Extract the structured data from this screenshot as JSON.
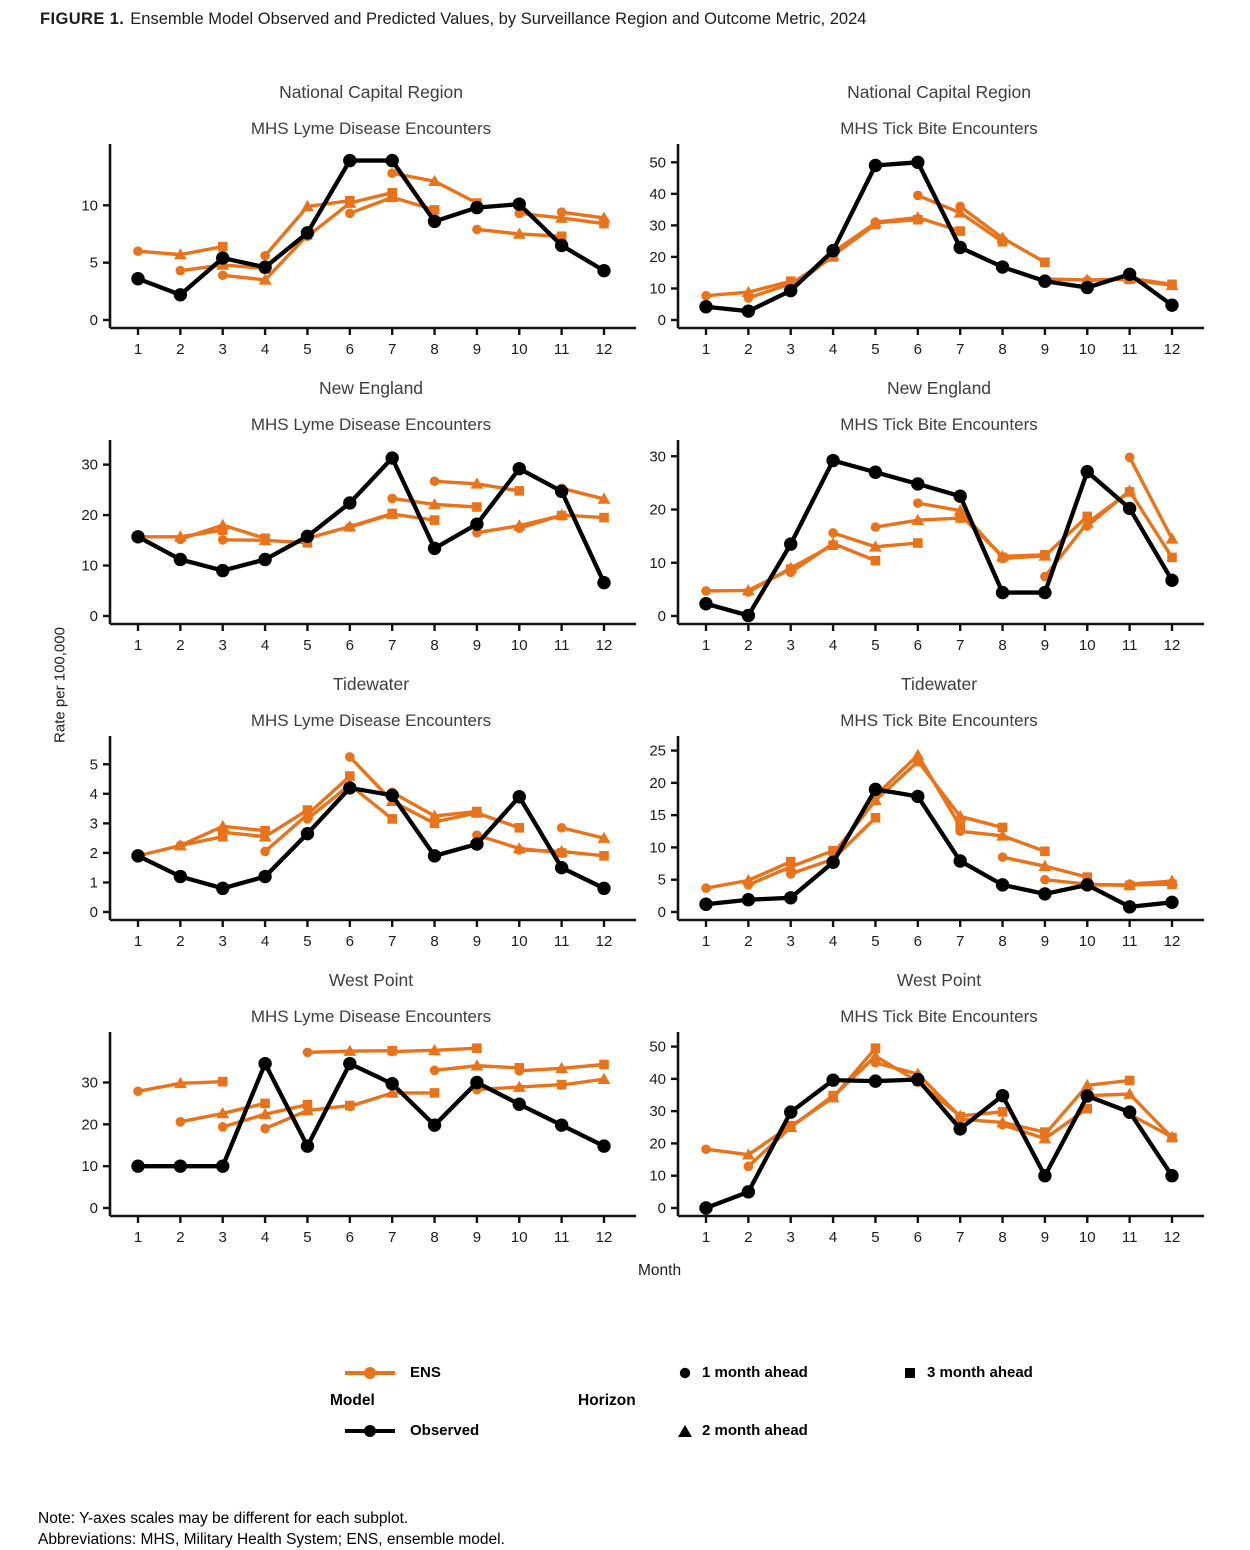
{
  "figure": {
    "title_label": "FIGURE 1.",
    "title_text": "Ensemble Model Observed and Predicted Values, by Surveillance Region and Outcome Metric, 2024",
    "y_axis_label": "Rate per 100,000",
    "x_axis_label": "Month",
    "notes": [
      "Note: Y-axes scales may be different for each subplot.",
      "Abbreviations: MHS, Military Health System; ENS, ensemble model."
    ]
  },
  "legend": {
    "model_header": "Model",
    "horizon_header": "Horizon",
    "ens_label": "ENS",
    "observed_label": "Observed",
    "horizon_items": [
      {
        "marker": "circle",
        "label": "1 month ahead"
      },
      {
        "marker": "triangle",
        "label": "2 month ahead"
      },
      {
        "marker": "square",
        "label": "3 month ahead"
      }
    ]
  },
  "colors": {
    "ens": "#E8731A",
    "observed": "#000000",
    "title_text": "#3D3D3D",
    "axis_text": "#1C1C1C"
  },
  "chart_data": [
    {
      "type": "line",
      "region": "National Capital Region",
      "metric": "MHS Lyme Disease Encounters",
      "months": [
        1,
        2,
        3,
        4,
        5,
        6,
        7,
        8,
        9,
        10,
        11,
        12
      ],
      "y_ticks": [
        0,
        5,
        10
      ],
      "ylim": [
        0,
        14.3
      ],
      "observed": [
        3.6,
        2.2,
        5.4,
        4.6,
        7.6,
        13.9,
        13.9,
        8.6,
        9.8,
        10.1,
        6.5,
        4.3
      ],
      "ens_forecasts": [
        {
          "start_month": 1,
          "values": [
            6.0,
            5.7,
            6.4
          ]
        },
        {
          "start_month": 2,
          "values": [
            4.3,
            4.8,
            4.5
          ]
        },
        {
          "start_month": 3,
          "values": [
            3.9,
            3.5,
            7.4
          ]
        },
        {
          "start_month": 4,
          "values": [
            5.6,
            9.9,
            10.4
          ]
        },
        {
          "start_month": 5,
          "values": [
            7.3,
            10.2,
            11.1
          ]
        },
        {
          "start_month": 6,
          "values": [
            9.3,
            10.7,
            9.6
          ]
        },
        {
          "start_month": 7,
          "values": [
            12.8,
            12.1,
            10.2
          ]
        },
        {
          "start_month": 9,
          "values": [
            7.9,
            7.5,
            7.3
          ]
        },
        {
          "start_month": 10,
          "values": [
            9.3,
            8.9,
            8.4
          ]
        },
        {
          "start_month": 11,
          "values": [
            9.4,
            8.9
          ]
        }
      ]
    },
    {
      "type": "line",
      "region": "National Capital Region",
      "metric": "MHS Tick Bite Encounters",
      "months": [
        1,
        2,
        3,
        4,
        5,
        6,
        7,
        8,
        9,
        10,
        11,
        12
      ],
      "y_ticks": [
        0,
        10,
        20,
        30,
        40,
        50
      ],
      "ylim": [
        0,
        52
      ],
      "observed": [
        4.2,
        2.8,
        9.3,
        22.0,
        49.0,
        50.0,
        23.0,
        16.8,
        12.3,
        10.3,
        14.5,
        4.7
      ],
      "ens_forecasts": [
        {
          "start_month": 1,
          "values": [
            7.7,
            8.8,
            12.3
          ]
        },
        {
          "start_month": 2,
          "values": [
            7.0,
            11.5,
            20.0
          ]
        },
        {
          "start_month": 3,
          "values": [
            9.8,
            20.5,
            30.3
          ]
        },
        {
          "start_month": 4,
          "values": [
            21.5,
            30.8,
            31.8
          ]
        },
        {
          "start_month": 5,
          "values": [
            31.0,
            32.5,
            28.2
          ]
        },
        {
          "start_month": 6,
          "values": [
            39.5,
            34.0,
            24.8
          ]
        },
        {
          "start_month": 7,
          "values": [
            36.0,
            26.0,
            18.3
          ]
        },
        {
          "start_month": 9,
          "values": [
            13.0,
            12.7,
            12.9
          ]
        },
        {
          "start_month": 10,
          "values": [
            12.5,
            13.2,
            11.3
          ]
        },
        {
          "start_month": 11,
          "values": [
            12.8,
            11.0
          ]
        }
      ]
    },
    {
      "type": "line",
      "region": "New England",
      "metric": "MHS Lyme Disease Encounters",
      "months": [
        1,
        2,
        3,
        4,
        5,
        6,
        7,
        8,
        9,
        10,
        11,
        12
      ],
      "y_ticks": [
        0,
        10,
        20,
        30
      ],
      "ylim": [
        0,
        32.5
      ],
      "observed": [
        15.7,
        11.2,
        9.0,
        11.2,
        15.8,
        22.4,
        31.3,
        13.4,
        18.2,
        29.2,
        24.7,
        6.6
      ],
      "ens_forecasts": [
        {
          "start_month": 1,
          "values": [
            15.7,
            15.7,
            17.0
          ]
        },
        {
          "start_month": 2,
          "values": [
            15.2,
            18.0,
            15.4
          ]
        },
        {
          "start_month": 3,
          "values": [
            15.1,
            15.0,
            14.5
          ]
        },
        {
          "start_month": 5,
          "values": [
            15.4,
            17.7,
            20.3
          ]
        },
        {
          "start_month": 6,
          "values": [
            17.6,
            20.2,
            19.0
          ]
        },
        {
          "start_month": 7,
          "values": [
            23.3,
            22.1,
            21.6
          ]
        },
        {
          "start_month": 8,
          "values": [
            26.7,
            26.2,
            24.8
          ]
        },
        {
          "start_month": 9,
          "values": [
            16.5,
            17.9,
            19.9
          ]
        },
        {
          "start_month": 10,
          "values": [
            17.4,
            20.0,
            19.5
          ]
        },
        {
          "start_month": 11,
          "values": [
            25.3,
            23.2
          ]
        }
      ]
    },
    {
      "type": "line",
      "region": "New England",
      "metric": "MHS Tick Bite Encounters",
      "months": [
        1,
        2,
        3,
        4,
        5,
        6,
        7,
        8,
        9,
        10,
        11,
        12
      ],
      "y_ticks": [
        0,
        10,
        20,
        30
      ],
      "ylim": [
        0,
        30.8
      ],
      "observed": [
        2.3,
        0.1,
        13.5,
        29.2,
        27.0,
        24.8,
        22.5,
        4.4,
        4.4,
        27.1,
        20.2,
        6.7
      ],
      "ens_forecasts": [
        {
          "start_month": 1,
          "values": [
            4.7,
            4.8,
            8.8
          ]
        },
        {
          "start_month": 2,
          "values": [
            4.5,
            9.0,
            13.3
          ]
        },
        {
          "start_month": 3,
          "values": [
            8.2,
            13.6,
            10.4
          ]
        },
        {
          "start_month": 4,
          "values": [
            15.6,
            13.0,
            13.7
          ]
        },
        {
          "start_month": 5,
          "values": [
            16.7,
            18.0,
            18.4
          ]
        },
        {
          "start_month": 6,
          "values": [
            21.2,
            19.8,
            11.0
          ]
        },
        {
          "start_month": 7,
          "values": [
            19.0,
            11.2,
            11.5
          ]
        },
        {
          "start_month": 8,
          "values": [
            10.8,
            11.3,
            18.7
          ]
        },
        {
          "start_month": 9,
          "values": [
            7.4,
            17.5,
            23.3
          ]
        },
        {
          "start_month": 10,
          "values": [
            16.9,
            23.5,
            11.0
          ]
        },
        {
          "start_month": 11,
          "values": [
            29.8,
            14.5
          ]
        }
      ]
    },
    {
      "type": "line",
      "region": "Tidewater",
      "metric": "MHS Lyme Disease Encounters",
      "months": [
        1,
        2,
        3,
        4,
        5,
        6,
        7,
        8,
        9,
        10,
        11,
        12
      ],
      "y_ticks": [
        0,
        1,
        2,
        3,
        4,
        5
      ],
      "ylim": [
        0,
        5.55
      ],
      "observed": [
        1.9,
        1.2,
        0.8,
        1.2,
        2.65,
        4.2,
        3.95,
        1.9,
        2.3,
        3.9,
        1.5,
        0.8
      ],
      "ens_forecasts": [
        {
          "start_month": 1,
          "values": [
            1.9,
            2.25,
            2.55
          ]
        },
        {
          "start_month": 2,
          "values": [
            2.25,
            2.9,
            2.75
          ]
        },
        {
          "start_month": 3,
          "values": [
            2.7,
            2.55,
            3.45
          ]
        },
        {
          "start_month": 4,
          "values": [
            2.05,
            3.3,
            4.6
          ]
        },
        {
          "start_month": 5,
          "values": [
            3.15,
            4.3,
            3.15
          ]
        },
        {
          "start_month": 6,
          "values": [
            5.25,
            3.75,
            3.0
          ]
        },
        {
          "start_month": 7,
          "values": [
            4.05,
            3.25,
            3.4
          ]
        },
        {
          "start_month": 8,
          "values": [
            3.05,
            3.35,
            2.85
          ]
        },
        {
          "start_month": 9,
          "values": [
            2.6,
            2.15,
            2.0
          ]
        },
        {
          "start_month": 10,
          "values": [
            2.1,
            2.05,
            1.9
          ]
        },
        {
          "start_month": 11,
          "values": [
            2.85,
            2.5
          ]
        }
      ]
    },
    {
      "type": "line",
      "region": "Tidewater",
      "metric": "MHS Tick Bite Encounters",
      "months": [
        1,
        2,
        3,
        4,
        5,
        6,
        7,
        8,
        9,
        10,
        11,
        12
      ],
      "y_ticks": [
        0,
        5,
        10,
        15,
        20,
        25
      ],
      "ylim": [
        0,
        25.4
      ],
      "observed": [
        1.2,
        1.9,
        2.2,
        7.7,
        19.0,
        17.9,
        7.9,
        4.2,
        2.8,
        4.2,
        0.8,
        1.5
      ],
      "ens_forecasts": [
        {
          "start_month": 1,
          "values": [
            3.7,
            4.9,
            7.8
          ]
        },
        {
          "start_month": 2,
          "values": [
            4.2,
            7.0,
            9.5
          ]
        },
        {
          "start_month": 3,
          "values": [
            5.9,
            8.2,
            14.6
          ]
        },
        {
          "start_month": 4,
          "values": [
            9.0,
            17.3,
            23.3
          ]
        },
        {
          "start_month": 5,
          "values": [
            18.0,
            24.3,
            13.3
          ]
        },
        {
          "start_month": 6,
          "values": [
            23.4,
            14.8,
            13.1
          ]
        },
        {
          "start_month": 7,
          "values": [
            12.5,
            11.8,
            9.4
          ]
        },
        {
          "start_month": 8,
          "values": [
            8.5,
            7.1,
            5.4
          ]
        },
        {
          "start_month": 9,
          "values": [
            5.0,
            4.3,
            4.1
          ]
        },
        {
          "start_month": 10,
          "values": [
            4.2,
            4.2,
            4.3
          ]
        },
        {
          "start_month": 11,
          "values": [
            4.3,
            4.8
          ]
        }
      ]
    },
    {
      "type": "line",
      "region": "West Point",
      "metric": "MHS Lyme Disease Encounters",
      "months": [
        1,
        2,
        3,
        4,
        5,
        6,
        7,
        8,
        9,
        10,
        11,
        12
      ],
      "y_ticks": [
        0,
        10,
        20,
        30
      ],
      "ylim": [
        0,
        39.2
      ],
      "observed": [
        10.0,
        10.0,
        10.0,
        34.5,
        14.8,
        34.5,
        29.7,
        19.8,
        30.0,
        24.8,
        19.8,
        14.8
      ],
      "ens_forecasts": [
        {
          "start_month": 1,
          "values": [
            27.9,
            29.8,
            30.2
          ]
        },
        {
          "start_month": 2,
          "values": [
            20.6,
            22.6,
            25.0
          ]
        },
        {
          "start_month": 3,
          "values": [
            19.4,
            22.4,
            24.7
          ]
        },
        {
          "start_month": 4,
          "values": [
            19.0,
            23.3,
            24.5
          ]
        },
        {
          "start_month": 5,
          "values": [
            37.2,
            37.5,
            37.6
          ]
        },
        {
          "start_month": 6,
          "values": [
            24.3,
            27.5,
            27.5
          ]
        },
        {
          "start_month": 7,
          "values": [
            37.4,
            37.7,
            38.2
          ]
        },
        {
          "start_month": 8,
          "values": [
            32.9,
            34.0,
            33.5
          ]
        },
        {
          "start_month": 9,
          "values": [
            28.3,
            28.9,
            29.5
          ]
        },
        {
          "start_month": 10,
          "values": [
            32.8,
            33.4,
            34.3
          ]
        },
        {
          "start_month": 11,
          "values": [
            29.4,
            30.8
          ]
        }
      ]
    },
    {
      "type": "line",
      "region": "West Point",
      "metric": "MHS Tick Bite Encounters",
      "months": [
        1,
        2,
        3,
        4,
        5,
        6,
        7,
        8,
        9,
        10,
        11,
        12
      ],
      "y_ticks": [
        0,
        10,
        20,
        30,
        40,
        50
      ],
      "ylim": [
        0,
        50.8
      ],
      "observed": [
        0.0,
        5.0,
        29.7,
        39.6,
        39.3,
        39.8,
        24.5,
        34.8,
        10.0,
        34.7,
        29.7,
        10.0
      ],
      "ens_forecasts": [
        {
          "start_month": 1,
          "values": [
            18.2,
            16.5,
            25.5
          ]
        },
        {
          "start_month": 2,
          "values": [
            12.9,
            25.0,
            34.8
          ]
        },
        {
          "start_month": 3,
          "values": [
            25.3,
            34.2,
            49.5
          ]
        },
        {
          "start_month": 4,
          "values": [
            34.5,
            47.0,
            39.2
          ]
        },
        {
          "start_month": 5,
          "values": [
            45.0,
            41.5,
            28.3
          ]
        },
        {
          "start_month": 6,
          "values": [
            39.0,
            28.5,
            29.8
          ]
        },
        {
          "start_month": 7,
          "values": [
            27.5,
            26.5,
            23.5
          ]
        },
        {
          "start_month": 8,
          "values": [
            25.8,
            21.5,
            30.8
          ]
        },
        {
          "start_month": 9,
          "values": [
            22.8,
            38.0,
            39.5
          ]
        },
        {
          "start_month": 10,
          "values": [
            34.8,
            35.3,
            21.8
          ]
        },
        {
          "start_month": 11,
          "values": [
            29.0,
            22.0
          ]
        }
      ]
    }
  ]
}
